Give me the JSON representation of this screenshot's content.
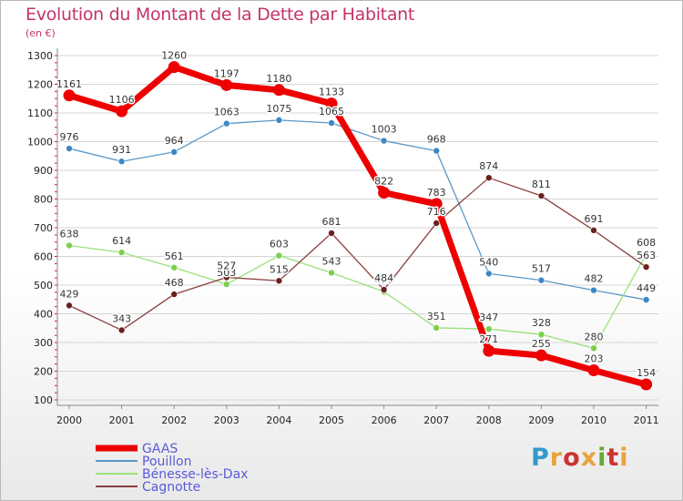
{
  "title": "Evolution du Montant de la Dette par Habitant",
  "subtitle": "(en €)",
  "logo": {
    "text": "Proxiti",
    "colors": [
      "#3399cc",
      "#e8a33a",
      "#cc3333",
      "#e8a33a",
      "#66aa33",
      "#cc3333",
      "#e8a33a"
    ]
  },
  "chart_data": {
    "type": "line",
    "title": "Evolution du Montant de la Dette par Habitant",
    "subtitle": "(en €)",
    "xlabel": "",
    "ylabel": "",
    "ylim": [
      100,
      1300
    ],
    "yticks": [
      100,
      200,
      300,
      400,
      500,
      600,
      700,
      800,
      900,
      1000,
      1100,
      1200,
      1300
    ],
    "grid": "horizontal",
    "legend_position": "bottom-left",
    "x": [
      "2000",
      "2001",
      "2002",
      "2003",
      "2004",
      "2005",
      "2006",
      "2007",
      "2008",
      "2009",
      "2010",
      "2011"
    ],
    "series": [
      {
        "name": "Pouillon",
        "color": "#5a98c8",
        "marker": "#3c87c4",
        "width": 1.3,
        "values": [
          976,
          931,
          964,
          1063,
          1075,
          1065,
          1003,
          968,
          540,
          517,
          482,
          449
        ]
      },
      {
        "name": "Bénesse-lès-Dax",
        "color": "#99e07a",
        "marker": "#7ccf4d",
        "width": 1.3,
        "values": [
          638,
          614,
          561,
          503,
          603,
          543,
          477,
          351,
          347,
          328,
          280,
          608
        ]
      },
      {
        "name": "Cagnotte",
        "color": "#8a3f3f",
        "marker": "#6a2020",
        "width": 1.3,
        "values": [
          429,
          343,
          468,
          527,
          515,
          681,
          484,
          716,
          874,
          811,
          691,
          563
        ]
      },
      {
        "name": "GAAS",
        "color": "#ee0000",
        "marker": "#ee0000",
        "width": 7,
        "values": [
          1161,
          1106,
          1260,
          1197,
          1180,
          1133,
          822,
          783,
          271,
          255,
          203,
          154
        ]
      }
    ],
    "legend_order": [
      "GAAS",
      "Pouillon",
      "Bénesse-lès-Dax",
      "Cagnotte"
    ]
  }
}
